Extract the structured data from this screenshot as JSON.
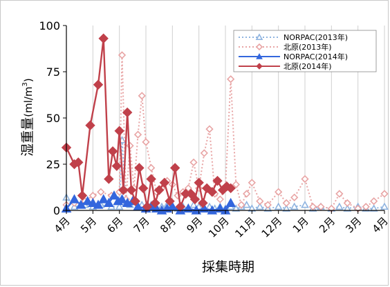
{
  "chart_data": {
    "type": "line",
    "xlabel": "採集時期",
    "ylabel": "湿重量",
    "ylabel_unit": "(ml/m",
    "ylabel_exp": "3",
    "ylabel_close": ")",
    "ylim": [
      0,
      100
    ],
    "yticks": [
      "0",
      "25",
      "50",
      "75",
      "100"
    ],
    "x_unit": "month_index (0 = April)",
    "xlim": [
      0,
      12
    ],
    "xticks": [
      "4月",
      "5月",
      "6月",
      "7月",
      "8月",
      "9月",
      "10月",
      "11月",
      "12月",
      "1月",
      "2月",
      "3月",
      "4月"
    ],
    "grid": "vertical",
    "legend_position": "top-right",
    "series": [
      {
        "name": "NORPAC(2013年)",
        "color": "#8fb4e0",
        "line": "dotted",
        "marker": "triangle-hollow",
        "x": [
          0.0,
          0.3,
          0.7,
          1.0,
          1.3,
          1.7,
          2.0,
          2.1,
          2.25,
          2.4,
          2.55,
          2.7,
          2.85,
          3.0,
          3.2,
          3.4,
          3.6,
          3.8,
          4.0,
          4.2,
          4.4,
          4.6,
          4.8,
          5.0,
          5.2,
          5.4,
          5.6,
          5.8,
          6.0,
          6.2,
          6.4,
          6.6,
          6.8,
          7.0,
          7.3,
          7.6,
          8.0,
          8.3,
          8.6,
          9.0,
          9.3,
          9.6,
          10.0,
          10.3,
          10.6,
          11.0,
          11.3,
          11.6,
          12.0
        ],
        "values": [
          7,
          2,
          3,
          2,
          3,
          2,
          2,
          38,
          4,
          3,
          5,
          2,
          3,
          2,
          3,
          1,
          2,
          3,
          2,
          1,
          2,
          1,
          3,
          2,
          1,
          2,
          1,
          2,
          1,
          2,
          1,
          2,
          3,
          1,
          2,
          1,
          2,
          1,
          2,
          3,
          1,
          2,
          1,
          2,
          1,
          2,
          1,
          1,
          2
        ]
      },
      {
        "name": "北原(2013年)",
        "color": "#e8a4a4",
        "line": "dotted",
        "marker": "diamond-hollow",
        "x": [
          0.0,
          0.3,
          0.7,
          1.0,
          1.3,
          1.7,
          2.0,
          2.1,
          2.25,
          2.4,
          2.55,
          2.7,
          2.85,
          3.0,
          3.2,
          3.4,
          3.6,
          3.8,
          4.0,
          4.2,
          4.4,
          4.6,
          4.8,
          5.0,
          5.2,
          5.4,
          5.6,
          5.8,
          6.0,
          6.2,
          6.4,
          6.6,
          6.8,
          7.0,
          7.3,
          7.6,
          8.0,
          8.3,
          8.6,
          9.0,
          9.3,
          9.6,
          10.0,
          10.3,
          10.6,
          11.0,
          11.3,
          11.6,
          12.0
        ],
        "values": [
          3,
          4,
          5,
          8,
          10,
          8,
          10,
          84,
          6,
          35,
          12,
          41,
          62,
          37,
          23,
          10,
          12,
          16,
          14,
          8,
          10,
          12,
          26,
          12,
          31,
          44,
          9,
          6,
          13,
          71,
          14,
          3,
          9,
          15,
          5,
          3,
          10,
          4,
          7,
          17,
          2,
          2,
          1,
          9,
          4,
          1,
          2,
          5,
          9
        ]
      },
      {
        "name": "NORPAC(2014年)",
        "color": "#3366dd",
        "line": "solid",
        "marker": "triangle",
        "x": [
          0.0,
          0.3,
          0.55,
          0.8,
          1.0,
          1.2,
          1.4,
          1.6,
          1.8,
          1.95,
          2.1,
          2.3,
          2.5,
          2.7,
          3.0,
          3.2,
          3.4,
          3.6,
          3.8,
          4.0,
          4.3,
          4.6,
          4.9,
          5.2,
          5.5,
          5.8,
          6.0,
          6.2
        ],
        "values": [
          1,
          6,
          3,
          5,
          4,
          3,
          6,
          4,
          8,
          5,
          6,
          4,
          5,
          2,
          1,
          2,
          1,
          0,
          1,
          2,
          0,
          1,
          0,
          1,
          0,
          1,
          0,
          4
        ]
      },
      {
        "name": "北原(2014年)",
        "color": "#c0404a",
        "line": "solid",
        "marker": "diamond",
        "x": [
          0.0,
          0.3,
          0.45,
          0.6,
          0.9,
          1.2,
          1.4,
          1.6,
          1.75,
          1.9,
          2.0,
          2.15,
          2.3,
          2.45,
          2.6,
          2.75,
          2.9,
          3.05,
          3.2,
          3.35,
          3.5,
          3.7,
          3.9,
          4.1,
          4.3,
          4.5,
          4.7,
          4.85,
          5.0,
          5.15,
          5.3,
          5.5,
          5.7,
          5.9,
          6.05,
          6.2
        ],
        "values": [
          34,
          25,
          26,
          8,
          46,
          68,
          93,
          17,
          32,
          24,
          43,
          11,
          53,
          11,
          5,
          23,
          12,
          2,
          17,
          4,
          11,
          15,
          5,
          23,
          2,
          9,
          9,
          6,
          15,
          4,
          12,
          10,
          16,
          11,
          13,
          12
        ]
      }
    ]
  }
}
